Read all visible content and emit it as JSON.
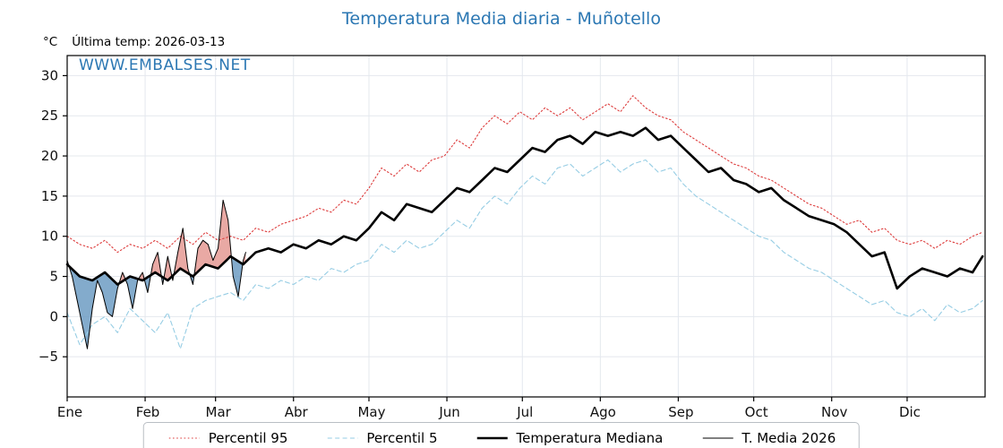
{
  "title": "Temperatura Media diaria - Muñotello",
  "header": {
    "units": "°C",
    "last_temp_label": "Última temp: 2026-03-13"
  },
  "watermark": "WWW.EMBALSES.NET",
  "colors": {
    "title_blue": "#2b77b3",
    "p95_red": "#dd3c3c",
    "p5_blue": "#96cde4",
    "median_black": "#000000",
    "fill_above": "#e59a94",
    "fill_below": "#6d9cc3",
    "grid": "#e4e8ee"
  },
  "chart_data": {
    "type": "line",
    "title": "Temperatura Media diaria - Muñotello",
    "xlabel": "",
    "ylabel": "°C",
    "ylim": [
      -10,
      32.5
    ],
    "yticks": [
      -5,
      0,
      5,
      10,
      15,
      20,
      25,
      30
    ],
    "xlim": [
      1,
      366
    ],
    "months": [
      "Ene",
      "Feb",
      "Mar",
      "Abr",
      "May",
      "Jun",
      "Jul",
      "Ago",
      "Sep",
      "Oct",
      "Nov",
      "Dic"
    ],
    "month_start_days": [
      1,
      32,
      60,
      91,
      121,
      152,
      182,
      213,
      244,
      274,
      305,
      335
    ],
    "grid": true,
    "legend_position": "bottom",
    "x_days": [
      1,
      6,
      11,
      16,
      21,
      26,
      31,
      36,
      41,
      46,
      51,
      56,
      61,
      66,
      71,
      76,
      81,
      86,
      91,
      96,
      101,
      106,
      111,
      116,
      121,
      126,
      131,
      136,
      141,
      146,
      151,
      156,
      161,
      166,
      171,
      176,
      181,
      186,
      191,
      196,
      201,
      206,
      211,
      216,
      221,
      226,
      231,
      236,
      241,
      246,
      251,
      256,
      261,
      266,
      271,
      276,
      281,
      286,
      291,
      296,
      301,
      306,
      311,
      316,
      321,
      326,
      331,
      336,
      341,
      346,
      351,
      356,
      361,
      365
    ],
    "series": [
      {
        "name": "Percentil 95",
        "style": "dotted",
        "color": "#dd3c3c",
        "width": 1.1,
        "values": [
          10,
          9,
          8.5,
          9.5,
          8,
          9,
          8.5,
          9.5,
          8.5,
          10,
          9,
          10.5,
          9.5,
          10,
          9.5,
          11,
          10.5,
          11.5,
          12,
          12.5,
          13.5,
          13,
          14.5,
          14,
          16,
          18.5,
          17.5,
          19,
          18,
          19.5,
          20,
          22,
          21,
          23.5,
          25,
          24,
          25.5,
          24.5,
          26,
          25,
          26,
          24.5,
          25.5,
          26.5,
          25.5,
          27.5,
          26,
          25,
          24.5,
          23,
          22,
          21,
          20,
          19,
          18.5,
          17.5,
          17,
          16,
          15,
          14,
          13.5,
          12.5,
          11.5,
          12,
          10.5,
          11,
          9.5,
          9,
          9.5,
          8.5,
          9.5,
          9,
          10,
          10.5
        ]
      },
      {
        "name": "Percentil 5",
        "style": "dashed",
        "color": "#96cde4",
        "width": 1.1,
        "values": [
          0.5,
          -3.5,
          -1,
          0,
          -2,
          1,
          -0.5,
          -2,
          0.5,
          -4,
          1,
          2,
          2.5,
          3,
          2,
          4,
          3.5,
          4.5,
          4,
          5,
          4.5,
          6,
          5.5,
          6.5,
          7,
          9,
          8,
          9.5,
          8.5,
          9,
          10.5,
          12,
          11,
          13.5,
          15,
          14,
          16,
          17.5,
          16.5,
          18.5,
          19,
          17.5,
          18.5,
          19.5,
          18,
          19,
          19.5,
          18,
          18.5,
          16.5,
          15,
          14,
          13,
          12,
          11,
          10,
          9.5,
          8,
          7,
          6,
          5.5,
          4.5,
          3.5,
          2.5,
          1.5,
          2,
          0.5,
          0,
          1,
          -0.5,
          1.5,
          0.5,
          1,
          2
        ]
      },
      {
        "name": "Temperatura Mediana",
        "style": "solid",
        "color": "#000000",
        "width": 2.6,
        "values": [
          6.5,
          5,
          4.5,
          5.5,
          4,
          5,
          4.5,
          5.5,
          4.5,
          6,
          5,
          6.5,
          6,
          7.5,
          6.5,
          8,
          8.5,
          8,
          9,
          8.5,
          9.5,
          9,
          10,
          9.5,
          11,
          13,
          12,
          14,
          13.5,
          13,
          14.5,
          16,
          15.5,
          17,
          18.5,
          18,
          19.5,
          21,
          20.5,
          22,
          22.5,
          21.5,
          23,
          22.5,
          23,
          22.5,
          23.5,
          22,
          22.5,
          21,
          19.5,
          18,
          18.5,
          17,
          16.5,
          15.5,
          16,
          14.5,
          13.5,
          12.5,
          12,
          11.5,
          10.5,
          9,
          7.5,
          8,
          3.5,
          5,
          6,
          5.5,
          5,
          6,
          5.5,
          7.5
        ]
      },
      {
        "name": "T. Media 2026",
        "style": "solid",
        "color": "#000000",
        "width": 1,
        "x": [
          1,
          3,
          5,
          7,
          9,
          11,
          13,
          15,
          17,
          19,
          21,
          23,
          25,
          27,
          29,
          31,
          33,
          35,
          37,
          39,
          41,
          43,
          45,
          47,
          49,
          51,
          53,
          55,
          57,
          59,
          61,
          63,
          65,
          67,
          69,
          71,
          72
        ],
        "values": [
          7,
          5,
          2,
          -1,
          -4,
          1,
          4.5,
          3,
          0.5,
          0,
          3.5,
          5.5,
          4,
          1,
          4.5,
          5.5,
          3,
          6.5,
          8,
          4,
          7.5,
          4.5,
          8,
          11,
          6,
          4,
          8.5,
          9.5,
          9,
          7,
          8.5,
          14.5,
          12,
          5,
          2.5,
          7,
          8
        ]
      }
    ],
    "fill": {
      "series": "T. Media 2026",
      "reference": "Temperatura Mediana",
      "above_color": "#e59a94",
      "below_color": "#6d9cc3"
    }
  },
  "legend": {
    "items": [
      {
        "label": "Percentil 95"
      },
      {
        "label": "Percentil 5"
      },
      {
        "label": "Temperatura Mediana"
      },
      {
        "label": "T. Media 2026"
      }
    ]
  }
}
